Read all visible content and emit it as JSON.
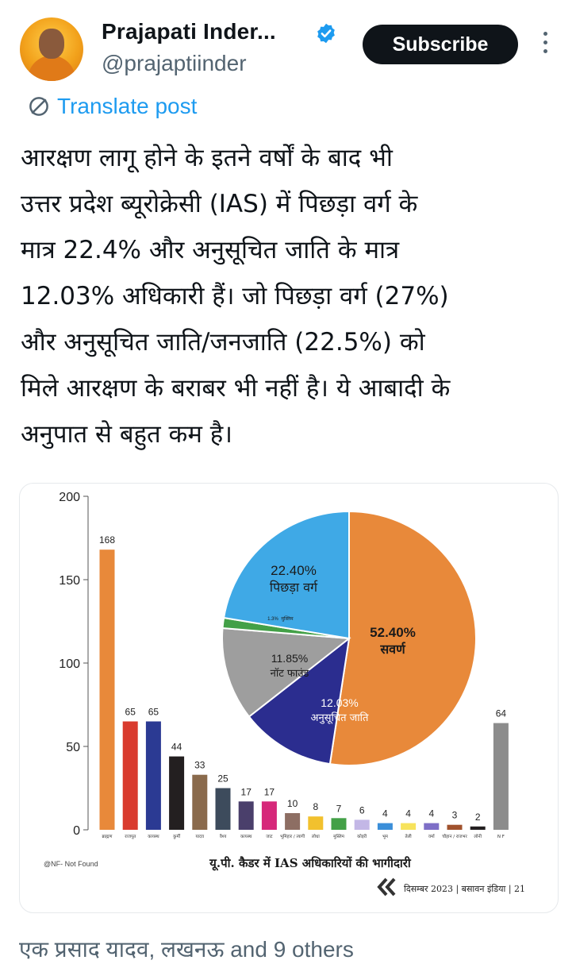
{
  "post": {
    "author_name": "Prajapati Inder...",
    "author_handle": "@prajaptiinder",
    "subscribe_label": "Subscribe",
    "translate_label": "Translate post",
    "lines": [
      "आरक्षण लागू होने के इतने वर्षों के बाद भी",
      "उत्तर प्रदेश ब्यूरोक्रेसी (IAS) में पिछड़ा वर्ग के",
      "मात्र 22.4% और अनुसूचित जाति के मात्र",
      "12.03% अधिकारी हैं। जो पिछड़ा वर्ग (27%)",
      "और अनुसूचित जाति/जनजाति (22.5%) को",
      "मिले आरक्षण के बराबर भी नहीं है। ये आबादी के",
      "अनुपात से बहुत कम है।"
    ],
    "bottom_text": "एक प्रसाद यादव, लखनऊ and 9 others"
  },
  "icons": {
    "verified": "verified-badge-icon",
    "translate": "translate-globe-icon",
    "more": "more-dots-icon"
  },
  "colors": {
    "verified_blue": "#1d9bf0",
    "link_blue": "#1d9bf0",
    "button_bg": "#0f1419",
    "muted_text": "#536471"
  },
  "chart_data": [
    {
      "type": "bar",
      "ylim": [
        0,
        200
      ],
      "yticks": [
        "0",
        "50",
        "100",
        "150",
        "200"
      ],
      "categories": [
        "ब्राह्मण",
        "राजपूत",
        "कायस्थ",
        "कुर्मी",
        "यादव",
        "वैश्य",
        "कायस्थ",
        "जाट",
        "भूमिहार / त्यागी",
        "लोधा",
        "मुस्लिम",
        "कोइरी",
        "भूम",
        "तेली",
        "वर्मा",
        "चौहान / राजभर",
        "लोनी",
        "N F"
      ],
      "values": [
        168,
        65,
        65,
        44,
        33,
        25,
        17,
        17,
        10,
        8,
        7,
        6,
        4,
        4,
        4,
        3,
        2,
        64
      ],
      "bar_colors": [
        "#e8893a",
        "#d93b2e",
        "#2b3a93",
        "#231f20",
        "#8a6a4c",
        "#3d4b5c",
        "#4a3f6b",
        "#d6287a",
        "#8d6e63",
        "#f2c12e",
        "#43a047",
        "#c3b7e6",
        "#3b8fd9",
        "#f7e35c",
        "#7e6fc7",
        "#a0522d",
        "#231f20",
        "#8c8c8c"
      ],
      "footnote": "@NF- Not Found",
      "caption": "यू.पी. कैडर में IAS अधिकारियों की भागीदारी",
      "credit": "दिसम्बर 2023 | बसावन इंडिया | 21"
    },
    {
      "type": "pie",
      "slices": [
        {
          "label": "सवर्ण",
          "value": 52.4,
          "value_label": "52.40%",
          "color": "#e8893a"
        },
        {
          "label": "अनुसूचित जाति",
          "value": 12.03,
          "value_label": "12.03%",
          "color": "#2b2d8f"
        },
        {
          "label": "नॉट फाउंड",
          "value": 11.85,
          "value_label": "11.85%",
          "color": "#9e9e9e"
        },
        {
          "label": "मुस्लिम",
          "value": 1.3,
          "value_label": "1.3%",
          "color": "#43a047"
        },
        {
          "label": "पिछड़ा वर्ग",
          "value": 22.4,
          "value_label": "22.40%",
          "color": "#3fa9e6"
        }
      ]
    }
  ]
}
